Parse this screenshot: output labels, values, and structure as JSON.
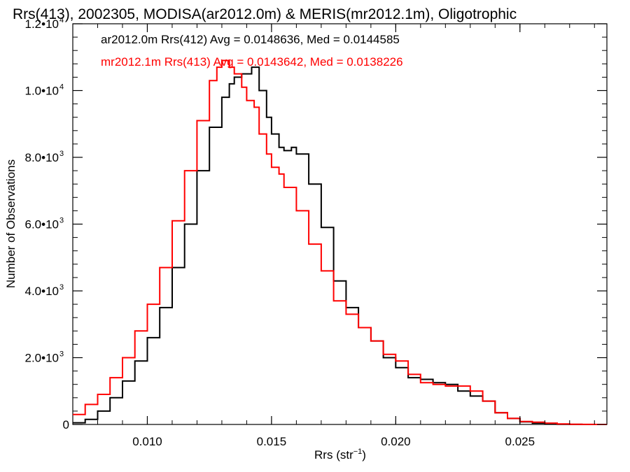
{
  "chart_data": {
    "type": "line",
    "title": "Rrs(413), 2002305, MODISA(ar2012.0m) & MERIS(mr2012.1m), Oligotrophic",
    "xlabel": "Rrs (str⁻¹)",
    "ylabel": "Number of Observations",
    "xlim": [
      0.007,
      0.0285
    ],
    "ylim": [
      0,
      12000
    ],
    "grid": false,
    "legend_position": "top-left",
    "x_ticks": [
      {
        "value": 0.01,
        "label": "0.010"
      },
      {
        "value": 0.015,
        "label": "0.015"
      },
      {
        "value": 0.02,
        "label": "0.020"
      },
      {
        "value": 0.025,
        "label": "0.025"
      }
    ],
    "y_ticks": [
      {
        "value": 0,
        "label": "0",
        "exp": ""
      },
      {
        "value": 2000,
        "label": "2.0•10",
        "exp": "3"
      },
      {
        "value": 4000,
        "label": "4.0•10",
        "exp": "3"
      },
      {
        "value": 6000,
        "label": "6.0•10",
        "exp": "3"
      },
      {
        "value": 8000,
        "label": "8.0•10",
        "exp": "3"
      },
      {
        "value": 10000,
        "label": "1.0•10",
        "exp": "4"
      },
      {
        "value": 12000,
        "label": "1.2•10",
        "exp": "4"
      }
    ],
    "series": [
      {
        "name": "ar2012.0m Rrs(412) Avg = 0.0148636, Med = 0.0144585",
        "color": "#000000",
        "x": [
          0.007,
          0.0075,
          0.008,
          0.0085,
          0.009,
          0.0095,
          0.01,
          0.0105,
          0.011,
          0.0115,
          0.012,
          0.0125,
          0.013,
          0.0133,
          0.0135,
          0.0138,
          0.014,
          0.0142,
          0.0145,
          0.0148,
          0.015,
          0.0153,
          0.0155,
          0.0158,
          0.016,
          0.0165,
          0.017,
          0.0175,
          0.018,
          0.0185,
          0.019,
          0.0195,
          0.02,
          0.0205,
          0.021,
          0.0215,
          0.022,
          0.0225,
          0.023,
          0.0235,
          0.024,
          0.0245,
          0.025,
          0.0255,
          0.026,
          0.0265,
          0.027,
          0.0275,
          0.028,
          0.0285
        ],
        "y": [
          50,
          150,
          400,
          800,
          1300,
          1900,
          2600,
          3500,
          4700,
          6000,
          7600,
          8900,
          9800,
          10200,
          10400,
          10500,
          10500,
          10700,
          10000,
          9200,
          8700,
          8300,
          8200,
          8300,
          8100,
          7200,
          5900,
          4300,
          3500,
          2900,
          2500,
          2000,
          1700,
          1400,
          1350,
          1250,
          1200,
          1000,
          850,
          700,
          350,
          180,
          80,
          40,
          15,
          5,
          3,
          1,
          0,
          0
        ]
      },
      {
        "name": "mr2012.1m Rrs(413) Avg = 0.0143642, Med = 0.0138226",
        "color": "#ff0000",
        "x": [
          0.007,
          0.0075,
          0.008,
          0.0085,
          0.009,
          0.0095,
          0.01,
          0.0105,
          0.011,
          0.0115,
          0.012,
          0.0125,
          0.0128,
          0.013,
          0.0133,
          0.0135,
          0.0138,
          0.014,
          0.0143,
          0.0145,
          0.0148,
          0.015,
          0.0153,
          0.0155,
          0.016,
          0.0165,
          0.017,
          0.0175,
          0.018,
          0.0185,
          0.019,
          0.0195,
          0.02,
          0.0205,
          0.021,
          0.0215,
          0.022,
          0.0225,
          0.023,
          0.0235,
          0.024,
          0.0245,
          0.025,
          0.0255,
          0.026,
          0.0265,
          0.027,
          0.0275,
          0.028,
          0.0285
        ],
        "y": [
          300,
          600,
          900,
          1400,
          2000,
          2800,
          3600,
          4700,
          6100,
          7600,
          9100,
          10300,
          10700,
          10900,
          10700,
          10500,
          10100,
          9700,
          9500,
          8700,
          8100,
          7700,
          7500,
          7100,
          6400,
          5400,
          4600,
          3700,
          3300,
          2900,
          2500,
          2100,
          1900,
          1500,
          1250,
          1200,
          1150,
          1150,
          1000,
          700,
          350,
          180,
          90,
          70,
          40,
          15,
          5,
          2,
          0,
          0
        ]
      }
    ]
  }
}
